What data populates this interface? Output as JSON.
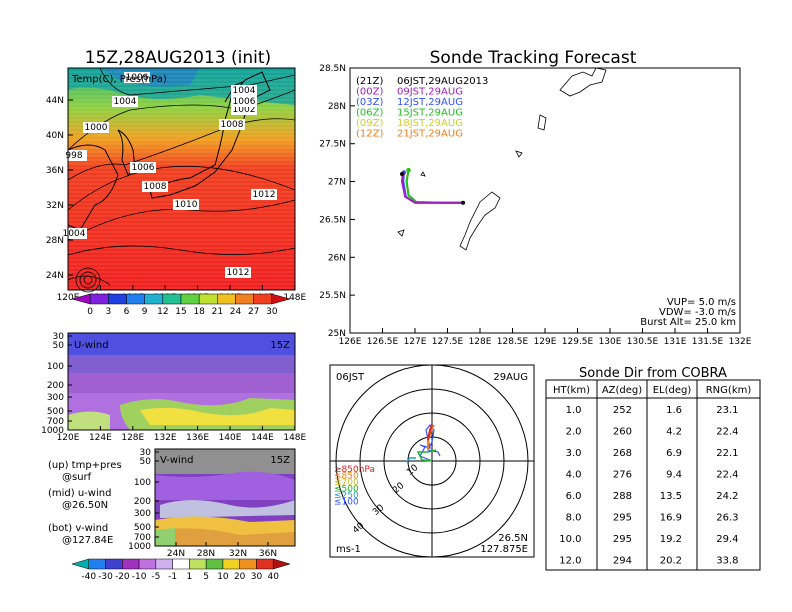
{
  "left_title": "15Z,28AUG2013 (init)",
  "map_panel": {
    "label": "Temp(C), Pres(hPa)",
    "lat_labels": [
      "44N",
      "40N",
      "36N",
      "32N",
      "28N",
      "24N"
    ],
    "lon_labels": [
      "120E",
      "124E",
      "128E",
      "132E",
      "136E",
      "140E",
      "144E",
      "148E"
    ],
    "contour_labels": [
      "1006",
      "1004",
      "1000",
      "998",
      "1002",
      "1004",
      "1006",
      "1008",
      "1006",
      "1008",
      "1010",
      "1012",
      "1004",
      "1012"
    ],
    "colorbar_ticks": [
      "0",
      "3",
      "6",
      "9",
      "12",
      "15",
      "18",
      "21",
      "24",
      "27",
      "30"
    ]
  },
  "u_panel": {
    "label": "U-wind",
    "time": "15Z",
    "y_ticks": [
      "30",
      "50",
      "100",
      "200",
      "300",
      "500",
      "700",
      "1000"
    ],
    "x_ticks": [
      "120E",
      "124E",
      "128E",
      "132E",
      "136E",
      "140E",
      "144E",
      "148E"
    ]
  },
  "v_panel": {
    "label": "V-wind",
    "time": "15Z",
    "y_ticks": [
      "30",
      "50",
      "100",
      "200",
      "300",
      "500",
      "700",
      "1000"
    ],
    "x_ticks": [
      "24N",
      "28N",
      "32N",
      "36N"
    ]
  },
  "legend_notes": [
    {
      "a": "(up)  tmp+pres",
      "b": "@surf"
    },
    {
      "a": "(mid)  u-wind",
      "b": "@26.50N"
    },
    {
      "a": "(bot)  v-wind",
      "b": "@127.84E"
    }
  ],
  "bottom_colorbar_ticks": [
    "-40",
    "-30",
    "-20",
    "-10",
    "-5",
    "-1",
    "1",
    "5",
    "10",
    "20",
    "30",
    "40"
  ],
  "tracking": {
    "title": "Sonde Tracking Forecast",
    "lat_ticks": [
      "28.5N",
      "28N",
      "27.5N",
      "27N",
      "26.5N",
      "26N",
      "25.5N",
      "25N"
    ],
    "lon_ticks": [
      "126E",
      "126.5E",
      "127E",
      "127.5E",
      "128E",
      "128.5E",
      "129E",
      "129.5E",
      "130E",
      "130.5E",
      "131E",
      "131.5E",
      "132E"
    ],
    "times": [
      {
        "z": "(21Z)",
        "jst": "06JST,29AUG2013",
        "color": "#000000"
      },
      {
        "z": "(00Z)",
        "jst": "09JST,29AUG",
        "color": "#a020c0"
      },
      {
        "z": "(03Z)",
        "jst": "12JST,29AUG",
        "color": "#3050ff"
      },
      {
        "z": "(06Z)",
        "jst": "15JST,29AUG",
        "color": "#20c020"
      },
      {
        "z": "(09Z)",
        "jst": "18JST,29AUG",
        "color": "#d0d020"
      },
      {
        "z": "(12Z)",
        "jst": "21JST,29AUG",
        "color": "#f08020"
      }
    ],
    "params": [
      "VUP=  5.0 m/s",
      "VDW= -3.0 m/s",
      "Burst Alt= 25.0 km"
    ]
  },
  "polar": {
    "left": "06JST",
    "right": "29AUG",
    "ring_labels": [
      "10",
      "20",
      "30",
      "40"
    ],
    "levels": [
      {
        "t": "≥850hPa",
        "c": "#e02020"
      },
      {
        "t": "≤850",
        "c": "#f08020"
      },
      {
        "t": "≤700",
        "c": "#d0c020"
      },
      {
        "t": "≤500",
        "c": "#20b020"
      },
      {
        "t": "≤250",
        "c": "#20a0d0"
      },
      {
        "t": "≤100",
        "c": "#3050ff"
      }
    ],
    "loc1": "26.5N",
    "loc2": "127.875E",
    "unit": "ms-1"
  },
  "sonde_table": {
    "title": "Sonde Dir from COBRA",
    "headers": [
      "HT(km)",
      "AZ(deg)",
      "EL(deg)",
      "RNG(km)"
    ],
    "rows": [
      [
        "1.0",
        "252",
        "1.6",
        "23.1"
      ],
      [
        "2.0",
        "260",
        "4.2",
        "22.4"
      ],
      [
        "3.0",
        "268",
        "6.9",
        "22.1"
      ],
      [
        "4.0",
        "276",
        "9.4",
        "22.4"
      ],
      [
        "6.0",
        "288",
        "13.5",
        "24.2"
      ],
      [
        "8.0",
        "295",
        "16.9",
        "26.3"
      ],
      [
        "10.0",
        "295",
        "19.2",
        "29.4"
      ],
      [
        "12.0",
        "294",
        "20.2",
        "33.8"
      ]
    ]
  },
  "chart_data": [
    {
      "type": "line",
      "title": "Sonde Tracking Forecast",
      "xlabel": "",
      "ylabel": "",
      "xlim": [
        126,
        132
      ],
      "ylim": [
        25,
        28.5
      ],
      "grid": false,
      "series": [
        {
          "name": "(00Z) 09JST,29AUG",
          "points": [
            [
              127.74,
              26.72
            ],
            [
              127.4,
              26.72
            ],
            [
              127.0,
              26.72
            ],
            [
              126.85,
              26.8
            ],
            [
              126.8,
              27.0
            ],
            [
              126.81,
              27.1
            ]
          ]
        },
        {
          "name": "(03Z) 12JST,29AUG",
          "points": [
            [
              127.74,
              26.72
            ],
            [
              127.4,
              26.72
            ],
            [
              127.0,
              26.72
            ],
            [
              126.86,
              26.8
            ],
            [
              126.82,
              27.0
            ],
            [
              126.83,
              27.12
            ]
          ]
        },
        {
          "name": "(06Z) 15JST,29AUG",
          "points": [
            [
              127.74,
              26.72
            ],
            [
              127.4,
              26.72
            ],
            [
              127.02,
              26.73
            ],
            [
              126.9,
              26.82
            ],
            [
              126.87,
              27.0
            ],
            [
              126.9,
              27.15
            ]
          ]
        },
        {
          "name": "(09Z) 18JST,29AUG",
          "points": [
            [
              127.74,
              26.72
            ],
            [
              127.4,
              26.72
            ],
            [
              127.02,
              26.73
            ],
            [
              126.9,
              26.82
            ],
            [
              126.87,
              27.0
            ],
            [
              126.9,
              27.15
            ]
          ]
        },
        {
          "name": "(12Z) 21JST,29AUG",
          "points": [
            [
              127.74,
              26.72
            ],
            [
              127.4,
              26.72
            ],
            [
              127.02,
              26.73
            ],
            [
              126.9,
              26.82
            ],
            [
              126.87,
              27.0
            ],
            [
              126.9,
              27.15
            ]
          ]
        }
      ]
    },
    {
      "type": "table",
      "title": "Sonde Dir from COBRA",
      "columns": [
        "HT(km)",
        "AZ(deg)",
        "EL(deg)",
        "RNG(km)"
      ],
      "rows": [
        [
          1.0,
          252,
          1.6,
          23.1
        ],
        [
          2.0,
          260,
          4.2,
          22.4
        ],
        [
          3.0,
          268,
          6.9,
          22.1
        ],
        [
          4.0,
          276,
          9.4,
          22.4
        ],
        [
          6.0,
          288,
          13.5,
          24.2
        ],
        [
          8.0,
          295,
          16.9,
          26.3
        ],
        [
          10.0,
          295,
          19.2,
          29.4
        ],
        [
          12.0,
          294,
          20.2,
          33.8
        ]
      ]
    }
  ]
}
